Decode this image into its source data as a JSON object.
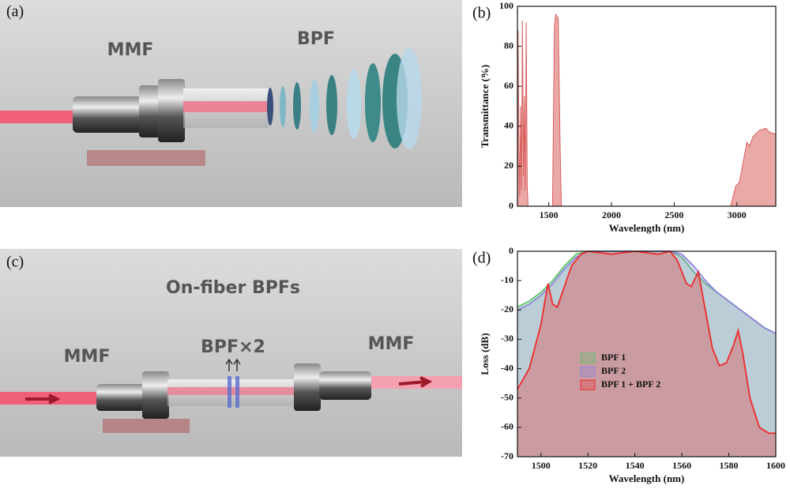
{
  "panels": {
    "a": {
      "label": "(a)",
      "fiber_label": "MMF",
      "filter_label": "BPF"
    },
    "c": {
      "label": "(c)",
      "title": "On-fiber BPFs",
      "left_label": "MMF",
      "filter_label": "BPF×2",
      "right_label": "MMF"
    }
  },
  "chart_data": [
    {
      "type": "area",
      "panel_label": "(b)",
      "x_label": "Wavelength (nm)",
      "y_label": "Transmittance (%)",
      "xlim": [
        1250,
        3310
      ],
      "ylim": [
        0,
        100
      ],
      "xticks": [
        1500,
        2000,
        2500,
        3000
      ],
      "yticks": [
        0,
        20,
        40,
        60,
        80,
        100
      ],
      "x": [
        1250,
        1255,
        1262,
        1268,
        1275,
        1282,
        1290,
        1298,
        1305,
        1312,
        1320,
        1328,
        1335,
        1530,
        1545,
        1555,
        1575,
        1590,
        1600,
        2950,
        2990,
        3020,
        3050,
        3080,
        3100,
        3130,
        3180,
        3230,
        3260,
        3310
      ],
      "series": [
        {
          "color": "#d9605e",
          "values": [
            0,
            88,
            30,
            5,
            50,
            8,
            93,
            15,
            55,
            8,
            92,
            10,
            0,
            0,
            90,
            96,
            94,
            30,
            0,
            0,
            10,
            12,
            22,
            32,
            30,
            35,
            38,
            39,
            37,
            36
          ]
        }
      ]
    },
    {
      "type": "area",
      "panel_label": "(d)",
      "x_label": "Wavelength (nm)",
      "y_label": "Loss (dB)",
      "xlim": [
        1490,
        1600
      ],
      "ylim": [
        -70,
        0
      ],
      "xticks": [
        1500,
        1520,
        1540,
        1560,
        1580,
        1600
      ],
      "yticks": [
        0,
        -10,
        -20,
        -30,
        -40,
        -50,
        -60,
        -70
      ],
      "legend": "center-left",
      "series": [
        {
          "name": "BPF 1",
          "color": "#5fc46c",
          "x": [
            1490,
            1495,
            1500,
            1505,
            1510,
            1515,
            1520,
            1530,
            1540,
            1550,
            1555,
            1560,
            1565,
            1570,
            1575,
            1580,
            1585,
            1590,
            1595,
            1600
          ],
          "values": [
            -19,
            -17,
            -14,
            -10,
            -5,
            -1,
            0,
            0,
            0,
            0,
            0,
            -2,
            -7,
            -11,
            -14,
            -17,
            -20,
            -23,
            -26,
            -28
          ]
        },
        {
          "name": "BPF 2",
          "color": "#8d84de",
          "x": [
            1490,
            1495,
            1500,
            1505,
            1510,
            1515,
            1520,
            1530,
            1540,
            1550,
            1555,
            1560,
            1565,
            1570,
            1575,
            1580,
            1585,
            1590,
            1595,
            1600
          ],
          "values": [
            -20,
            -18,
            -15,
            -11,
            -6,
            -2,
            0,
            0,
            0,
            0,
            0,
            -1,
            -5,
            -10,
            -14,
            -17,
            -20,
            -23,
            -26,
            -28
          ]
        },
        {
          "name": "BPF 1 + BPF 2",
          "color": "#ee2a2a",
          "x": [
            1490,
            1495,
            1500,
            1503,
            1505,
            1507,
            1510,
            1513,
            1517,
            1520,
            1530,
            1540,
            1550,
            1555,
            1558,
            1562,
            1564,
            1567,
            1570,
            1573,
            1576,
            1579,
            1582,
            1584,
            1586,
            1589,
            1593,
            1597,
            1600
          ],
          "values": [
            -47,
            -40,
            -25,
            -11,
            -18,
            -19,
            -12,
            -5,
            -1,
            0,
            -1,
            0,
            -1,
            0,
            -3,
            -11,
            -12,
            -7,
            -20,
            -33,
            -39,
            -38,
            -32,
            -27,
            -35,
            -50,
            -60,
            -62,
            -62
          ]
        }
      ]
    }
  ]
}
